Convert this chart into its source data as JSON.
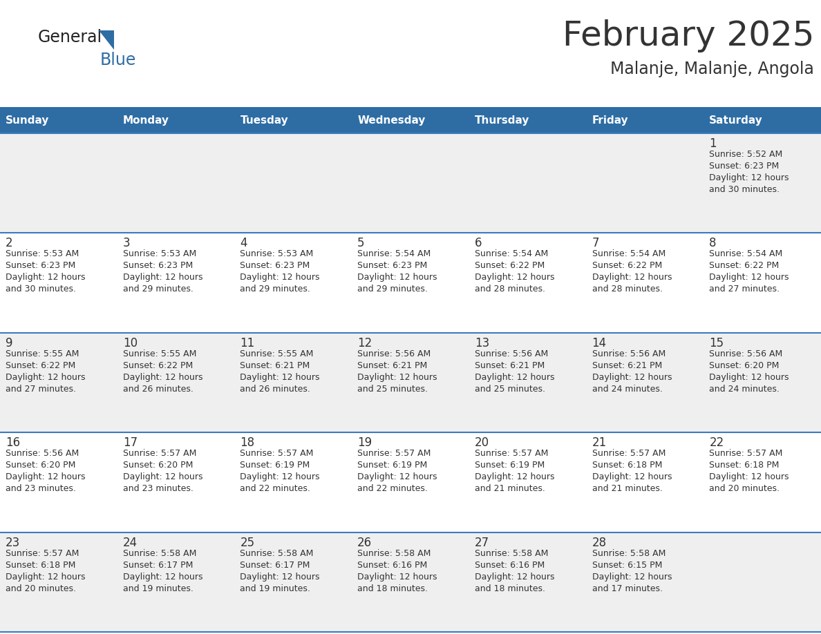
{
  "title": "February 2025",
  "subtitle": "Malanje, Malanje, Angola",
  "header_color": "#2E6DA4",
  "header_text_color": "#FFFFFF",
  "bg_color": "#FFFFFF",
  "cell_alt_color": "#EFEFEF",
  "border_color": "#3A7BBF",
  "text_color": "#333333",
  "days_of_week": [
    "Sunday",
    "Monday",
    "Tuesday",
    "Wednesday",
    "Thursday",
    "Friday",
    "Saturday"
  ],
  "weeks": [
    [
      {
        "day": "",
        "sunrise": "",
        "sunset": "",
        "daylight": ""
      },
      {
        "day": "",
        "sunrise": "",
        "sunset": "",
        "daylight": ""
      },
      {
        "day": "",
        "sunrise": "",
        "sunset": "",
        "daylight": ""
      },
      {
        "day": "",
        "sunrise": "",
        "sunset": "",
        "daylight": ""
      },
      {
        "day": "",
        "sunrise": "",
        "sunset": "",
        "daylight": ""
      },
      {
        "day": "",
        "sunrise": "",
        "sunset": "",
        "daylight": ""
      },
      {
        "day": "1",
        "sunrise": "5:52 AM",
        "sunset": "6:23 PM",
        "daylight": "12 hours\nand 30 minutes."
      }
    ],
    [
      {
        "day": "2",
        "sunrise": "5:53 AM",
        "sunset": "6:23 PM",
        "daylight": "12 hours\nand 30 minutes."
      },
      {
        "day": "3",
        "sunrise": "5:53 AM",
        "sunset": "6:23 PM",
        "daylight": "12 hours\nand 29 minutes."
      },
      {
        "day": "4",
        "sunrise": "5:53 AM",
        "sunset": "6:23 PM",
        "daylight": "12 hours\nand 29 minutes."
      },
      {
        "day": "5",
        "sunrise": "5:54 AM",
        "sunset": "6:23 PM",
        "daylight": "12 hours\nand 29 minutes."
      },
      {
        "day": "6",
        "sunrise": "5:54 AM",
        "sunset": "6:22 PM",
        "daylight": "12 hours\nand 28 minutes."
      },
      {
        "day": "7",
        "sunrise": "5:54 AM",
        "sunset": "6:22 PM",
        "daylight": "12 hours\nand 28 minutes."
      },
      {
        "day": "8",
        "sunrise": "5:54 AM",
        "sunset": "6:22 PM",
        "daylight": "12 hours\nand 27 minutes."
      }
    ],
    [
      {
        "day": "9",
        "sunrise": "5:55 AM",
        "sunset": "6:22 PM",
        "daylight": "12 hours\nand 27 minutes."
      },
      {
        "day": "10",
        "sunrise": "5:55 AM",
        "sunset": "6:22 PM",
        "daylight": "12 hours\nand 26 minutes."
      },
      {
        "day": "11",
        "sunrise": "5:55 AM",
        "sunset": "6:21 PM",
        "daylight": "12 hours\nand 26 minutes."
      },
      {
        "day": "12",
        "sunrise": "5:56 AM",
        "sunset": "6:21 PM",
        "daylight": "12 hours\nand 25 minutes."
      },
      {
        "day": "13",
        "sunrise": "5:56 AM",
        "sunset": "6:21 PM",
        "daylight": "12 hours\nand 25 minutes."
      },
      {
        "day": "14",
        "sunrise": "5:56 AM",
        "sunset": "6:21 PM",
        "daylight": "12 hours\nand 24 minutes."
      },
      {
        "day": "15",
        "sunrise": "5:56 AM",
        "sunset": "6:20 PM",
        "daylight": "12 hours\nand 24 minutes."
      }
    ],
    [
      {
        "day": "16",
        "sunrise": "5:56 AM",
        "sunset": "6:20 PM",
        "daylight": "12 hours\nand 23 minutes."
      },
      {
        "day": "17",
        "sunrise": "5:57 AM",
        "sunset": "6:20 PM",
        "daylight": "12 hours\nand 23 minutes."
      },
      {
        "day": "18",
        "sunrise": "5:57 AM",
        "sunset": "6:19 PM",
        "daylight": "12 hours\nand 22 minutes."
      },
      {
        "day": "19",
        "sunrise": "5:57 AM",
        "sunset": "6:19 PM",
        "daylight": "12 hours\nand 22 minutes."
      },
      {
        "day": "20",
        "sunrise": "5:57 AM",
        "sunset": "6:19 PM",
        "daylight": "12 hours\nand 21 minutes."
      },
      {
        "day": "21",
        "sunrise": "5:57 AM",
        "sunset": "6:18 PM",
        "daylight": "12 hours\nand 21 minutes."
      },
      {
        "day": "22",
        "sunrise": "5:57 AM",
        "sunset": "6:18 PM",
        "daylight": "12 hours\nand 20 minutes."
      }
    ],
    [
      {
        "day": "23",
        "sunrise": "5:57 AM",
        "sunset": "6:18 PM",
        "daylight": "12 hours\nand 20 minutes."
      },
      {
        "day": "24",
        "sunrise": "5:58 AM",
        "sunset": "6:17 PM",
        "daylight": "12 hours\nand 19 minutes."
      },
      {
        "day": "25",
        "sunrise": "5:58 AM",
        "sunset": "6:17 PM",
        "daylight": "12 hours\nand 19 minutes."
      },
      {
        "day": "26",
        "sunrise": "5:58 AM",
        "sunset": "6:16 PM",
        "daylight": "12 hours\nand 18 minutes."
      },
      {
        "day": "27",
        "sunrise": "5:58 AM",
        "sunset": "6:16 PM",
        "daylight": "12 hours\nand 18 minutes."
      },
      {
        "day": "28",
        "sunrise": "5:58 AM",
        "sunset": "6:15 PM",
        "daylight": "12 hours\nand 17 minutes."
      },
      {
        "day": "",
        "sunrise": "",
        "sunset": "",
        "daylight": ""
      }
    ]
  ],
  "logo_general_color": "#222222",
  "logo_blue_color": "#2E6DA4",
  "logo_triangle_color": "#2E6DA4"
}
